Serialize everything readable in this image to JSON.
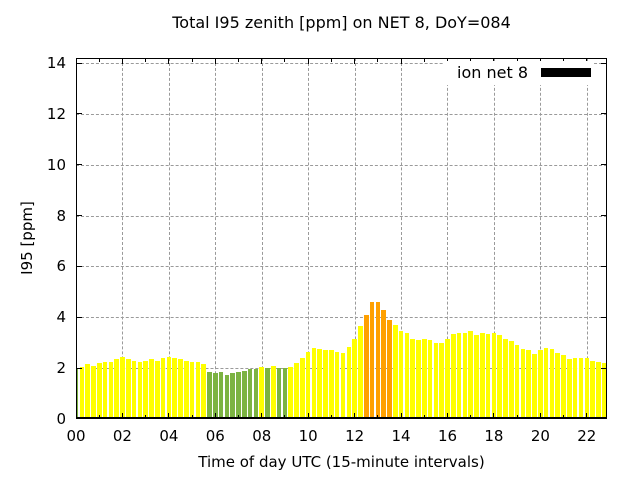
{
  "title": "Total I95 zenith [ppm] on NET 8, DoY=084",
  "legend": {
    "label": "ion net 8"
  },
  "axes": {
    "ylabel": "I95 [ppm]",
    "xlabel": "Time of day UTC (15-minute intervals)",
    "y_tick_labels": [
      "0",
      "2",
      "4",
      "6",
      "8",
      "10",
      "12",
      "14"
    ],
    "x_tick_labels": [
      "00",
      "02",
      "04",
      "06",
      "08",
      "10",
      "12",
      "14",
      "16",
      "18",
      "20",
      "22"
    ]
  },
  "colors": {
    "grid": "#9a9a9a",
    "frame": "#000000",
    "background": "#ffffff"
  },
  "chart_data": {
    "type": "bar",
    "title": "Total I95 zenith [ppm] on NET 8, DoY=084",
    "xlabel": "Time of day UTC (15-minute intervals)",
    "ylabel": "I95 [ppm]",
    "legend_label": "ion net 8",
    "legend_position": "top-right-inside",
    "grid": true,
    "interval_minutes": 15,
    "ylim": [
      0,
      14.2
    ],
    "xlim_hours": [
      0,
      22.87
    ],
    "y_tick_values": [
      0,
      2,
      4,
      6,
      8,
      10,
      12,
      14
    ],
    "x_tick_hours": [
      0,
      2,
      4,
      6,
      8,
      10,
      12,
      14,
      16,
      18,
      20,
      22
    ],
    "bar_colors": {
      "normal": "#ffff00",
      "low": "#7cb342",
      "high": "#ffa000"
    },
    "times": [
      "00:00",
      "00:15",
      "00:30",
      "00:45",
      "01:00",
      "01:15",
      "01:30",
      "01:45",
      "02:00",
      "02:15",
      "02:30",
      "02:45",
      "03:00",
      "03:15",
      "03:30",
      "03:45",
      "04:00",
      "04:15",
      "04:30",
      "04:45",
      "05:00",
      "05:15",
      "05:30",
      "05:45",
      "06:00",
      "06:15",
      "06:30",
      "06:45",
      "07:00",
      "07:15",
      "07:30",
      "07:45",
      "08:00",
      "08:15",
      "08:30",
      "08:45",
      "09:00",
      "09:15",
      "09:30",
      "09:45",
      "10:00",
      "10:15",
      "10:30",
      "10:45",
      "11:00",
      "11:15",
      "11:30",
      "11:45",
      "12:00",
      "12:15",
      "12:30",
      "12:45",
      "13:00",
      "13:15",
      "13:30",
      "13:45",
      "14:00",
      "14:15",
      "14:30",
      "14:45",
      "15:00",
      "15:15",
      "15:30",
      "15:45",
      "16:00",
      "16:15",
      "16:30",
      "16:45",
      "17:00",
      "17:15",
      "17:30",
      "17:45",
      "18:00",
      "18:15",
      "18:30",
      "18:45",
      "19:00",
      "19:15",
      "19:30",
      "19:45",
      "20:00",
      "20:15",
      "20:30",
      "20:45",
      "21:00",
      "21:15",
      "21:30",
      "21:45",
      "22:00",
      "22:15",
      "22:30",
      "22:45"
    ],
    "values": [
      2.0,
      2.05,
      2.15,
      2.1,
      2.2,
      2.25,
      2.25,
      2.35,
      2.45,
      2.35,
      2.3,
      2.25,
      2.3,
      2.35,
      2.3,
      2.4,
      2.45,
      2.4,
      2.35,
      2.3,
      2.25,
      2.25,
      2.15,
      1.85,
      1.8,
      1.85,
      1.75,
      1.8,
      1.85,
      1.9,
      1.95,
      1.95,
      2.05,
      2.0,
      2.1,
      2.0,
      2.0,
      2.05,
      2.2,
      2.4,
      2.65,
      2.8,
      2.75,
      2.7,
      2.7,
      2.65,
      2.6,
      2.85,
      3.15,
      3.65,
      4.1,
      4.6,
      4.6,
      4.3,
      3.9,
      3.7,
      3.45,
      3.4,
      3.15,
      3.1,
      3.15,
      3.1,
      3.0,
      3.0,
      3.15,
      3.35,
      3.4,
      3.4,
      3.45,
      3.3,
      3.4,
      3.35,
      3.4,
      3.3,
      3.15,
      3.05,
      2.9,
      2.75,
      2.7,
      2.55,
      2.7,
      2.8,
      2.75,
      2.6,
      2.5,
      2.35,
      2.4,
      2.4,
      2.4,
      2.3,
      2.25,
      2.2
    ],
    "levels": [
      "low",
      "normal",
      "normal",
      "normal",
      "normal",
      "normal",
      "normal",
      "normal",
      "normal",
      "normal",
      "normal",
      "normal",
      "normal",
      "normal",
      "normal",
      "normal",
      "normal",
      "normal",
      "normal",
      "normal",
      "normal",
      "normal",
      "normal",
      "low",
      "low",
      "low",
      "low",
      "low",
      "low",
      "low",
      "low",
      "low",
      "normal",
      "low",
      "normal",
      "low",
      "low",
      "normal",
      "normal",
      "normal",
      "normal",
      "normal",
      "normal",
      "normal",
      "normal",
      "normal",
      "normal",
      "normal",
      "normal",
      "normal",
      "high",
      "high",
      "high",
      "high",
      "high",
      "normal",
      "normal",
      "normal",
      "normal",
      "normal",
      "normal",
      "normal",
      "normal",
      "normal",
      "normal",
      "normal",
      "normal",
      "normal",
      "normal",
      "normal",
      "normal",
      "normal",
      "normal",
      "normal",
      "normal",
      "normal",
      "normal",
      "normal",
      "normal",
      "normal",
      "normal",
      "normal",
      "normal",
      "normal",
      "normal",
      "normal",
      "normal",
      "normal",
      "normal",
      "normal",
      "normal",
      "normal"
    ]
  }
}
